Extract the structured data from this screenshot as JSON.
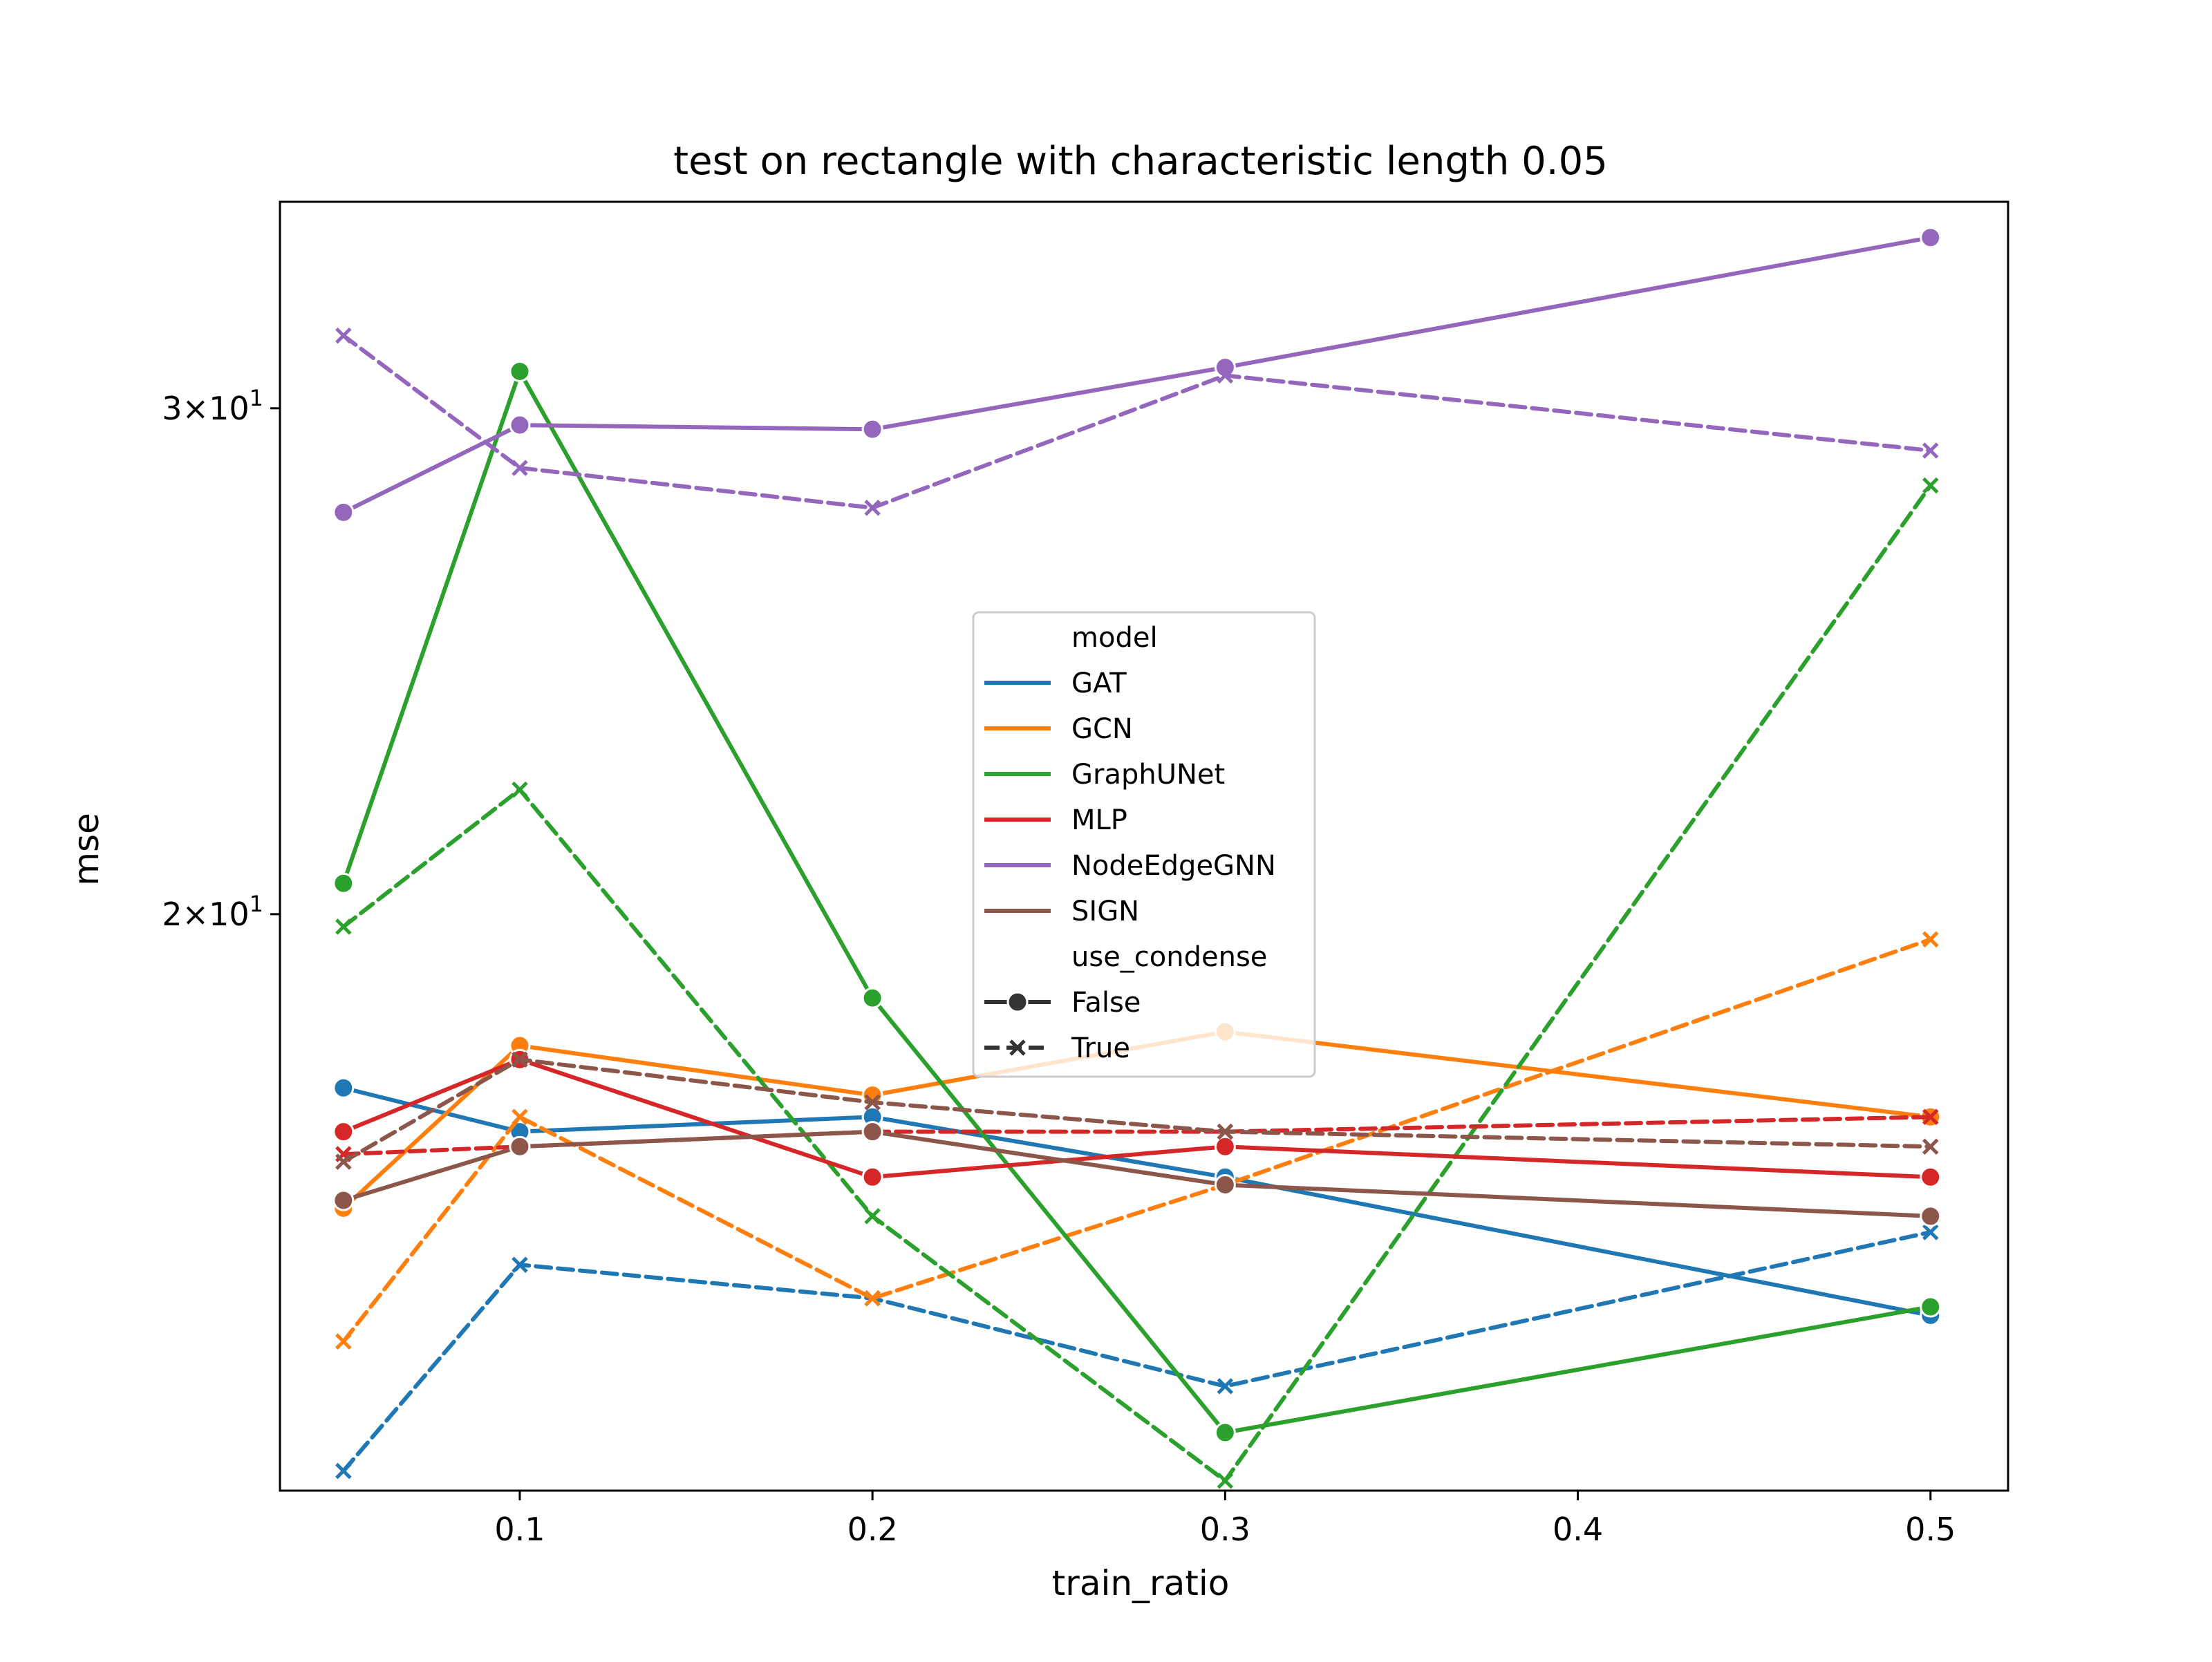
{
  "chart_data": {
    "type": "line",
    "title": "test on rectangle with characteristic length 0.05",
    "xlabel": "train_ratio",
    "ylabel": "mse",
    "xlim": [
      0.032,
      0.522
    ],
    "ylim": [
      12.6,
      35.4
    ],
    "yscale": "log",
    "grid": false,
    "x_ticks": [
      0.1,
      0.2,
      0.3,
      0.4,
      0.5
    ],
    "x_tick_labels": [
      "0.1",
      "0.2",
      "0.3",
      "0.4",
      "0.5"
    ],
    "y_ticks": [
      {
        "value": 30,
        "mantissa": "3",
        "base": "10",
        "exponent": "1"
      },
      {
        "value": 20,
        "mantissa": "2",
        "base": "10",
        "exponent": "1"
      }
    ],
    "x": [
      0.05,
      0.1,
      0.2,
      0.3,
      0.5
    ],
    "legend": {
      "position": "center",
      "hue_title": "model",
      "style_title": "use_condense",
      "style_entries": [
        {
          "label": "False",
          "marker": "circle",
          "dash": "solid"
        },
        {
          "label": "True",
          "marker": "x",
          "dash": "dashed"
        }
      ]
    },
    "series": [
      {
        "name": "GAT",
        "color": "#1f77b4",
        "false": [
          17.4,
          16.8,
          17.0,
          16.2,
          14.5
        ],
        "true": [
          12.8,
          15.1,
          14.7,
          13.7,
          15.5
        ]
      },
      {
        "name": "GCN",
        "color": "#ff7f0e",
        "false": [
          15.8,
          18.0,
          17.3,
          18.2,
          17.0
        ],
        "true": [
          14.2,
          17.0,
          14.7,
          16.1,
          19.6
        ]
      },
      {
        "name": "GraphUNet",
        "color": "#2ca02c",
        "false": [
          20.5,
          30.9,
          18.7,
          13.2,
          14.6
        ],
        "true": [
          19.8,
          22.1,
          15.7,
          12.7,
          28.2
        ]
      },
      {
        "name": "MLP",
        "color": "#d62728",
        "false": [
          16.8,
          17.8,
          16.2,
          16.6,
          16.2
        ],
        "true": [
          16.5,
          16.6,
          16.8,
          16.8,
          17.0
        ]
      },
      {
        "name": "NodeEdgeGNN",
        "color": "#9467bd",
        "false": [
          27.6,
          29.6,
          29.5,
          31.0,
          34.4
        ],
        "true": [
          31.8,
          28.6,
          27.7,
          30.8,
          29.0
        ]
      },
      {
        "name": "SIGN",
        "color": "#8c564b",
        "false": [
          15.9,
          16.6,
          16.8,
          16.1,
          15.7
        ],
        "true": [
          16.4,
          17.8,
          17.2,
          16.8,
          16.6
        ]
      }
    ]
  }
}
